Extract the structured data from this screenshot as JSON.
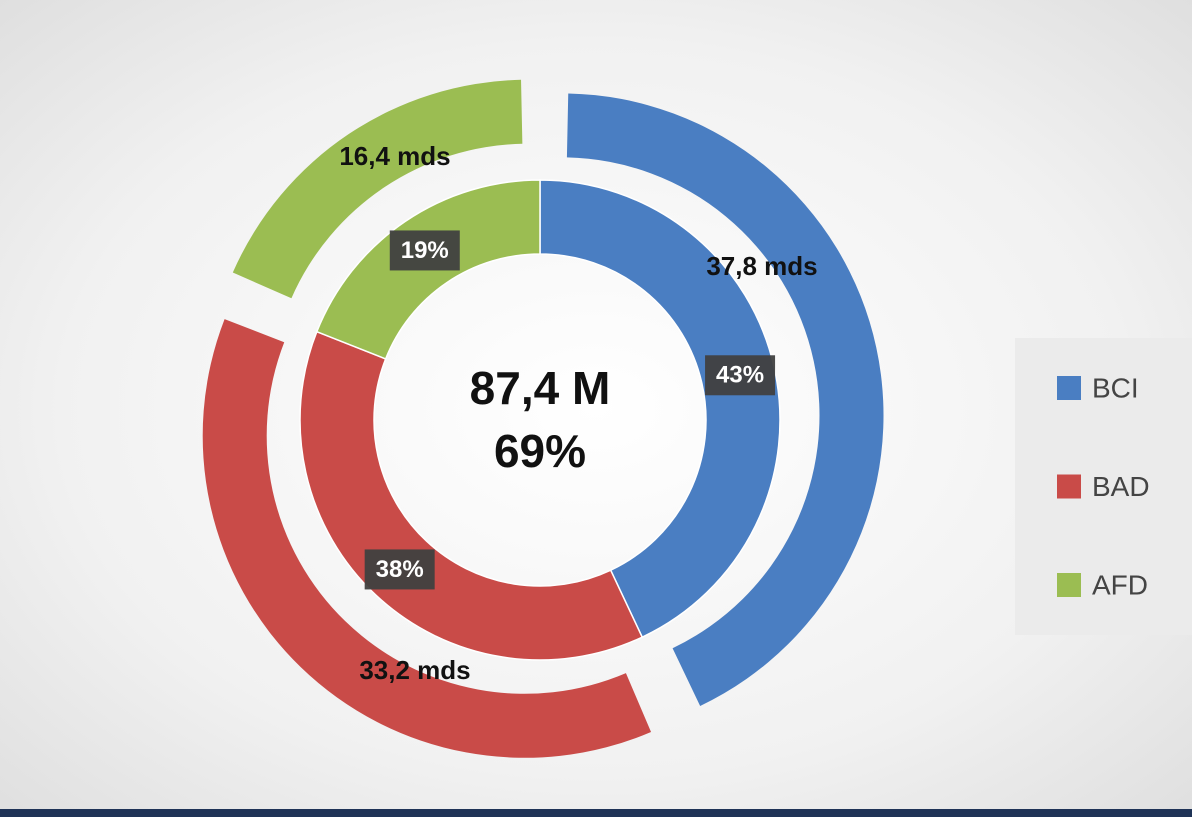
{
  "chart_data": {
    "type": "doughnut",
    "categories": [
      "BCI",
      "BAD",
      "AFD"
    ],
    "colors": [
      "#4a7ec2",
      "#c94b48",
      "#9bbd52"
    ],
    "series": [
      {
        "values": [
          37.8,
          33.2,
          16.4
        ],
        "value_labels": [
          "37,8 mds",
          "33,2 mds",
          "16,4 mds"
        ]
      },
      {
        "values": [
          43,
          38,
          19
        ],
        "value_labels": [
          "43%",
          "38%",
          "19%"
        ]
      }
    ],
    "center_labels": [
      "87,4 M",
      "69%"
    ],
    "legend": "right"
  }
}
